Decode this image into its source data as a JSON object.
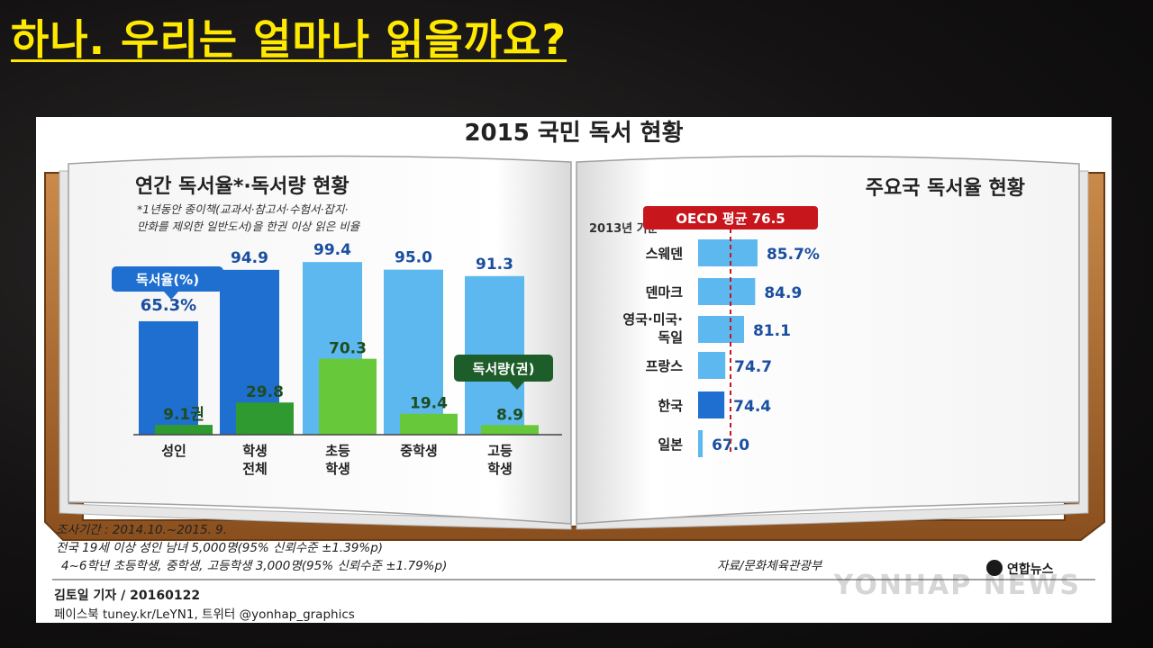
{
  "slide": {
    "title": "하나.  우리는 얼마나 읽을까요?"
  },
  "figure": {
    "title": "2015 국민 독서 현황",
    "footer": {
      "survey_period": "조사기간 : 2014.10.~2015. 9.",
      "sample_adults": "전국 19세 이상 성인 남녀 5,000명(95% 신뢰수준 ±1.39%p)",
      "sample_students": "4~6학년 초등학생, 중학생, 고등학생 3,000명(95% 신뢰수준 ±1.79%p)",
      "source": "자료/문화체육관광부",
      "logo": "연합뉴스",
      "watermark": "YONHAP NEWS",
      "byline": "김토일 기자 / 20160122",
      "social": "페이스북 tuney.kr/LeYN1, 트위터 @yonhap_graphics"
    }
  },
  "chart_data": [
    {
      "type": "bar",
      "title": "연간 독서율*·독서량 현황",
      "note": "*1년동안 종이책(교과서·참고서·수험서·잡지·만화를 제외한 일반도서)을 한권 이상 읽은 비율",
      "note_line1": "*1년동안 종이책(교과서·참고서·수험서·잡지·",
      "note_line2": "만화를 제외한 일반도서)을 한권 이상 읽은 비율",
      "categories": [
        "성인",
        "학생 전체",
        "초등 학생",
        "중학생",
        "고등 학생"
      ],
      "category_lines": [
        [
          "성인"
        ],
        [
          "학생",
          "전체"
        ],
        [
          "초등",
          "학생"
        ],
        [
          "중학생"
        ],
        [
          "고등",
          "학생"
        ]
      ],
      "series": [
        {
          "name": "독서율(%)",
          "values": [
            65.3,
            94.9,
            99.4,
            95.0,
            91.3
          ],
          "labels": [
            "65.3%",
            "94.9",
            "99.4",
            "95.0",
            "91.3"
          ]
        },
        {
          "name": "독서량(권)",
          "values": [
            9.1,
            29.8,
            70.3,
            19.4,
            8.9
          ],
          "labels": [
            "9.1권",
            "29.8",
            "70.3",
            "19.4",
            "8.9"
          ]
        }
      ],
      "colors": {
        "rate_dark": "#1f6fd0",
        "rate_light": "#5cb8ef",
        "volume_dark": "#2f9a30",
        "volume_light": "#67c93a",
        "rate_callout": "#1f6fd0",
        "volume_callout": "#1d5d2a"
      }
    },
    {
      "type": "bar",
      "orientation": "horizontal",
      "title": "주요국 독서율 현황",
      "subtitle": "2013년 기준",
      "categories": [
        "스웨덴",
        "덴마크",
        "영국·미국·독일",
        "프랑스",
        "한국",
        "일본"
      ],
      "category_lines": [
        [
          "스웨덴"
        ],
        [
          "덴마크"
        ],
        [
          "영국·미국·",
          "독일"
        ],
        [
          "프랑스"
        ],
        [
          "한국"
        ],
        [
          "일본"
        ]
      ],
      "values": [
        85.7,
        84.9,
        81.1,
        74.7,
        74.4,
        67.0
      ],
      "labels": [
        "85.7%",
        "84.9",
        "81.1",
        "74.7",
        "74.4",
        "67.0"
      ],
      "highlight": "한국",
      "reference_line": {
        "label": "OECD 평균 76.5",
        "value": 76.5
      },
      "colors": {
        "bar": "#5cb8ef",
        "highlight": "#1f6fd0",
        "reference": "#c8161d"
      }
    }
  ]
}
